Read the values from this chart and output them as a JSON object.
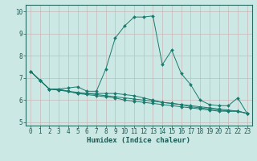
{
  "x": [
    0,
    1,
    2,
    3,
    4,
    5,
    6,
    7,
    8,
    9,
    10,
    11,
    12,
    13,
    14,
    15,
    16,
    17,
    18,
    19,
    20,
    21,
    22,
    23
  ],
  "y_main": [
    7.3,
    6.9,
    6.5,
    6.5,
    6.55,
    6.6,
    6.4,
    6.4,
    7.4,
    8.8,
    9.35,
    9.75,
    9.75,
    9.8,
    7.6,
    8.25,
    7.2,
    6.7,
    6.0,
    5.8,
    5.75,
    5.75,
    6.1,
    5.4
  ],
  "y_low1": [
    7.3,
    6.9,
    6.5,
    6.5,
    6.4,
    6.3,
    6.3,
    6.3,
    6.3,
    6.3,
    6.25,
    6.2,
    6.1,
    6.0,
    5.9,
    5.85,
    5.8,
    5.7,
    5.65,
    5.6,
    5.55,
    5.5,
    5.5,
    5.4
  ],
  "y_low2": [
    7.3,
    6.9,
    6.5,
    6.45,
    6.4,
    6.3,
    6.25,
    6.2,
    6.15,
    6.1,
    6.0,
    5.95,
    5.9,
    5.85,
    5.8,
    5.75,
    5.7,
    5.65,
    5.6,
    5.55,
    5.5,
    5.5,
    5.5,
    5.4
  ],
  "y_low3": [
    7.3,
    6.9,
    6.5,
    6.45,
    6.4,
    6.35,
    6.3,
    6.25,
    6.2,
    6.15,
    6.1,
    6.05,
    6.0,
    5.95,
    5.9,
    5.85,
    5.8,
    5.75,
    5.7,
    5.65,
    5.6,
    5.55,
    5.5,
    5.4
  ],
  "line_color": "#1a7a6e",
  "bg_color": "#cce8e4",
  "grid_color_major": "#c8b8b8",
  "grid_color_minor": "#ddd0d0",
  "xlabel": "Humidex (Indice chaleur)",
  "ylabel_ticks": [
    5,
    6,
    7,
    8,
    9,
    10
  ],
  "xlim": [
    -0.5,
    23.5
  ],
  "ylim": [
    4.85,
    10.3
  ],
  "label_fontsize": 6.5,
  "tick_fontsize": 5.5
}
